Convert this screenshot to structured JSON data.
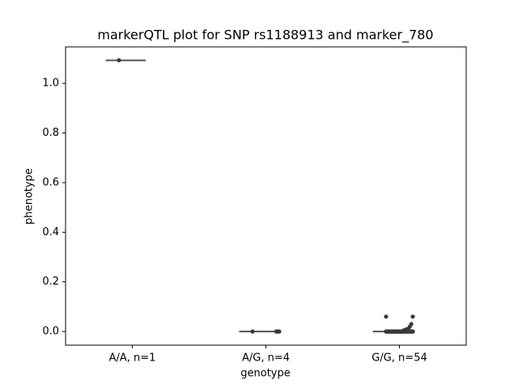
{
  "chart_data": {
    "type": "strip-box",
    "title": "markerQTL plot for SNP rs1188913 and marker_780",
    "x_label": "genotype",
    "y_label": "phenotype",
    "categories": [
      "A/A, n=1",
      "A/G, n=4",
      "G/G, n=54"
    ],
    "series": [
      {
        "color": "#3a3a3a",
        "values": [
          1.093
        ]
      },
      {
        "color": "#3a3a3a",
        "values": [
          0,
          0,
          0,
          0
        ]
      },
      {
        "color": "#3a3a3a",
        "values": [
          0.06,
          0.06,
          0.03,
          0.02,
          0.01,
          0.01,
          0.005,
          0.005,
          0,
          0,
          0,
          0,
          0,
          0,
          0,
          0,
          0,
          0,
          0,
          0,
          0,
          0,
          0,
          0,
          0,
          0,
          0,
          0,
          0,
          0,
          0,
          0,
          0,
          0,
          0,
          0,
          0,
          0,
          0,
          0,
          0,
          0,
          0,
          0,
          0,
          0,
          0,
          0,
          0,
          0,
          0,
          0,
          0,
          0
        ]
      }
    ],
    "medians": [
      1.093,
      0,
      0
    ],
    "box_color": "#555555",
    "ylim": [
      -0.055,
      1.147
    ],
    "yticks": [
      {
        "value": 0,
        "label": "0.0"
      },
      {
        "value": 0.2,
        "label": "0.2"
      },
      {
        "value": 0.4,
        "label": "0.4"
      },
      {
        "value": 0.6,
        "label": "0.6"
      },
      {
        "value": 0.8,
        "label": "0.8"
      },
      {
        "value": 1,
        "label": "1.0"
      }
    ],
    "grid": false
  }
}
